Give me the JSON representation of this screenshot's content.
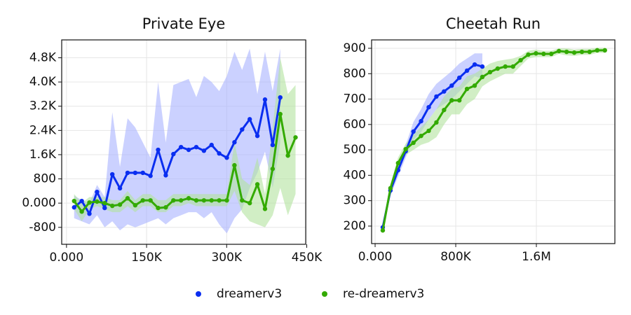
{
  "chart_data": [
    {
      "type": "line",
      "title": "Private Eye",
      "legend": "bottom",
      "grid": true,
      "xlim": [
        -9000,
        448000
      ],
      "ylim": [
        -1360,
        5390
      ],
      "xticks": [
        {
          "value": 0,
          "label": "0.000"
        },
        {
          "value": 150000,
          "label": "150K"
        },
        {
          "value": 300000,
          "label": "300K"
        },
        {
          "value": 450000,
          "label": "450K"
        }
      ],
      "yticks": [
        -800,
        {
          "value": 0,
          "label": "0.000"
        },
        800,
        {
          "value": 1600,
          "label": "1.6K"
        },
        {
          "value": 2400,
          "label": "2.4K"
        },
        {
          "value": 3200,
          "label": "3.2K"
        },
        {
          "value": 4000,
          "label": "4.0K"
        },
        {
          "value": 4800,
          "label": "4.8K"
        }
      ],
      "series": [
        {
          "name": "dreamerv3",
          "color": "#0a2ef0",
          "band_color": "#a9b2ff",
          "x": [
            14300,
            28600,
            42900,
            57200,
            71500,
            85800,
            100100,
            114400,
            128700,
            143000,
            157300,
            171600,
            185900,
            200200,
            214500,
            228800,
            243100,
            257400,
            271700,
            286000,
            300300,
            314600,
            328900,
            343200,
            357500,
            371800,
            386100,
            400400
          ],
          "values": [
            -140,
            70,
            -350,
            370,
            -160,
            950,
            490,
            1000,
            1000,
            1000,
            900,
            1760,
            920,
            1620,
            1850,
            1760,
            1850,
            1730,
            1920,
            1640,
            1500,
            2010,
            2430,
            2770,
            2220,
            3420,
            1920,
            3490
          ],
          "upper": [
            250,
            100,
            0,
            600,
            200,
            3000,
            1200,
            2800,
            2500,
            2000,
            1500,
            4000,
            2000,
            3900,
            4000,
            4100,
            3500,
            4200,
            4000,
            3700,
            4200,
            5000,
            4400,
            5100,
            3600,
            5000,
            3700,
            5100
          ],
          "lower": [
            -500,
            -600,
            -700,
            -400,
            -800,
            -600,
            -900,
            -700,
            -800,
            -700,
            -600,
            -500,
            -700,
            -500,
            -400,
            -300,
            -300,
            -500,
            -300,
            -700,
            -1000,
            -500,
            -200,
            500,
            1000,
            1700,
            500,
            2000
          ]
        },
        {
          "name": "re-dreamerv3",
          "color": "#33aa00",
          "band_color": "#b3e39f",
          "x": [
            14300,
            28600,
            42900,
            57200,
            71500,
            85800,
            100100,
            114400,
            128700,
            143000,
            157300,
            171600,
            185900,
            200200,
            214500,
            228800,
            243100,
            257400,
            271700,
            286000,
            300300,
            314600,
            328900,
            343200,
            357500,
            371800,
            386100,
            400400,
            414700,
            429000
          ],
          "values": [
            70,
            -280,
            20,
            50,
            0,
            -90,
            -50,
            160,
            -70,
            90,
            90,
            -160,
            -140,
            90,
            90,
            160,
            90,
            90,
            90,
            90,
            90,
            1250,
            90,
            0,
            620,
            -190,
            1130,
            2940,
            1570,
            2170
          ],
          "upper": [
            300,
            0,
            200,
            200,
            200,
            100,
            100,
            400,
            100,
            300,
            300,
            100,
            100,
            300,
            300,
            300,
            300,
            300,
            300,
            300,
            300,
            2000,
            800,
            600,
            1500,
            300,
            2500,
            4800,
            3600,
            3900
          ],
          "lower": [
            -200,
            -600,
            -200,
            -100,
            -200,
            -300,
            -300,
            -100,
            -300,
            -100,
            -100,
            -300,
            -300,
            -100,
            -100,
            0,
            -100,
            -100,
            -100,
            -100,
            -100,
            400,
            -300,
            -600,
            -700,
            -800,
            -400,
            500,
            -400,
            300
          ]
        }
      ]
    },
    {
      "type": "line",
      "title": "Cheetah Run",
      "grid": true,
      "xlim": [
        -35000,
        2379000
      ],
      "ylim": [
        131,
        933
      ],
      "xticks": [
        {
          "value": 0,
          "label": "0.000"
        },
        {
          "value": 800000,
          "label": "800K"
        },
        {
          "value": 1600000,
          "label": "1.6M"
        }
      ],
      "yticks": [
        200,
        300,
        400,
        500,
        600,
        700,
        800,
        900
      ],
      "series": [
        {
          "name": "dreamerv3",
          "color": "#0a2ef0",
          "band_color": "#a9b2ff",
          "x": [
            76000,
            152000,
            228000,
            304000,
            380000,
            456000,
            532000,
            608000,
            684000,
            760000,
            836000,
            912000,
            988000,
            1064000
          ],
          "values": [
            195,
            340,
            420,
            495,
            572,
            613,
            668,
            710,
            730,
            753,
            784,
            812,
            836,
            828
          ],
          "upper": [
            205,
            360,
            445,
            520,
            610,
            660,
            720,
            760,
            785,
            810,
            840,
            860,
            880,
            880
          ],
          "lower": [
            185,
            320,
            395,
            470,
            540,
            570,
            620,
            660,
            680,
            700,
            730,
            760,
            790,
            780
          ]
        },
        {
          "name": "re-dreamerv3",
          "color": "#33aa00",
          "band_color": "#b3e39f",
          "x": [
            76000,
            152000,
            228000,
            304000,
            380000,
            456000,
            532000,
            608000,
            684000,
            760000,
            836000,
            912000,
            988000,
            1064000,
            1140000,
            1216000,
            1292000,
            1368000,
            1444000,
            1520000,
            1596000,
            1672000,
            1748000,
            1824000,
            1900000,
            1976000,
            2052000,
            2128000,
            2204000,
            2280000
          ],
          "values": [
            183,
            349,
            448,
            503,
            528,
            555,
            575,
            608,
            657,
            695,
            695,
            740,
            753,
            787,
            806,
            820,
            828,
            828,
            853,
            875,
            880,
            878,
            878,
            889,
            886,
            883,
            886,
            886,
            892,
            892
          ],
          "upper": [
            190,
            365,
            470,
            525,
            560,
            590,
            620,
            660,
            710,
            740,
            750,
            790,
            800,
            820,
            840,
            850,
            855,
            860,
            870,
            890,
            895,
            890,
            890,
            900,
            900,
            895,
            898,
            898,
            902,
            902
          ],
          "lower": [
            175,
            335,
            425,
            480,
            500,
            520,
            530,
            550,
            600,
            640,
            640,
            680,
            700,
            750,
            770,
            785,
            800,
            800,
            830,
            860,
            865,
            865,
            865,
            878,
            872,
            870,
            874,
            874,
            882,
            882
          ]
        }
      ]
    }
  ]
}
